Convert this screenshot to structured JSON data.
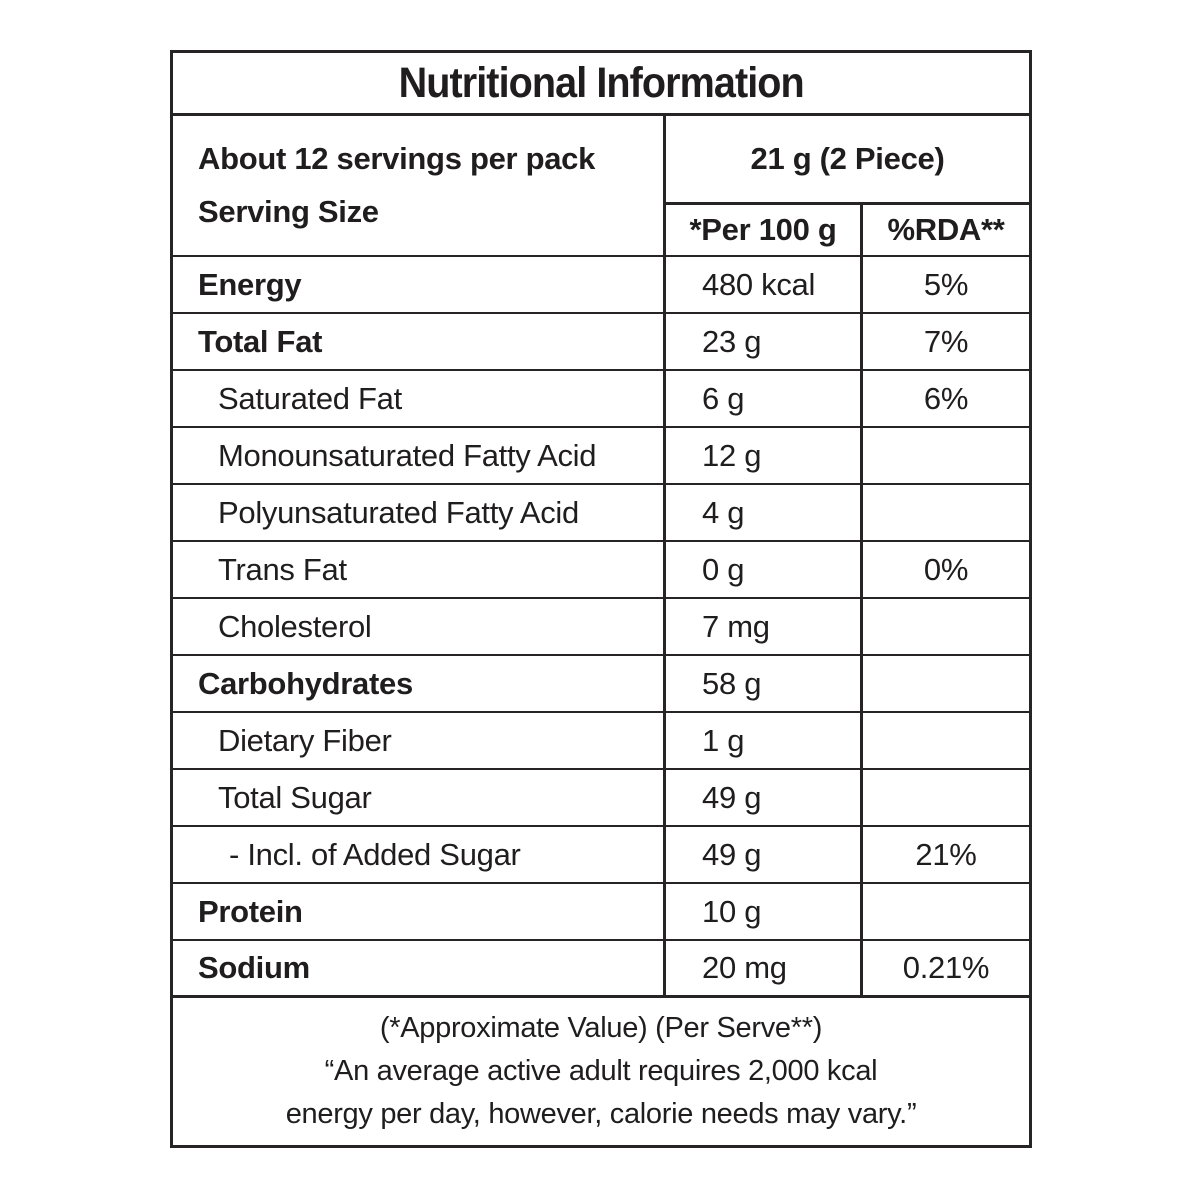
{
  "table": {
    "title": "Nutritional Information",
    "serving_info": {
      "line1": "About 12 servings per pack",
      "line2": "Serving Size",
      "serving_size": "21 g (2 Piece)",
      "col_per100g": "*Per 100 g",
      "col_rda": "%RDA**"
    },
    "rows": [
      {
        "label": "Energy",
        "bold": true,
        "indent": 0,
        "per100g": "480 kcal",
        "rda": "5%"
      },
      {
        "label": "Total Fat",
        "bold": true,
        "indent": 0,
        "per100g": "23 g",
        "rda": "7%"
      },
      {
        "label": "Saturated Fat",
        "bold": false,
        "indent": 1,
        "per100g": "6 g",
        "rda": "6%"
      },
      {
        "label": "Monounsaturated Fatty Acid",
        "bold": false,
        "indent": 1,
        "per100g": "12 g",
        "rda": ""
      },
      {
        "label": "Polyunsaturated Fatty Acid",
        "bold": false,
        "indent": 1,
        "per100g": "4 g",
        "rda": ""
      },
      {
        "label": "Trans Fat",
        "bold": false,
        "indent": 1,
        "per100g": "0 g",
        "rda": "0%"
      },
      {
        "label": "Cholesterol",
        "bold": false,
        "indent": 1,
        "per100g": "7 mg",
        "rda": ""
      },
      {
        "label": "Carbohydrates",
        "bold": true,
        "indent": 0,
        "per100g": "58 g",
        "rda": ""
      },
      {
        "label": "Dietary Fiber",
        "bold": false,
        "indent": 1,
        "per100g": "1 g",
        "rda": ""
      },
      {
        "label": "Total Sugar",
        "bold": false,
        "indent": 1,
        "per100g": "49 g",
        "rda": ""
      },
      {
        "label": "- Incl. of Added Sugar",
        "bold": false,
        "indent": 2,
        "per100g": "49 g",
        "rda": "21%"
      },
      {
        "label": "Protein",
        "bold": true,
        "indent": 0,
        "per100g": "10 g",
        "rda": ""
      },
      {
        "label": "Sodium",
        "bold": true,
        "indent": 0,
        "per100g": "20 mg",
        "rda": "0.21%"
      }
    ],
    "footer": {
      "line1": "(*Approximate Value) (Per Serve**)",
      "line2": "“An average active adult requires 2,000 kcal",
      "line3": "energy per day, however, calorie needs may vary.”"
    },
    "colors": {
      "border": "#262425",
      "text": "#1f1d1e",
      "background": "#ffffff"
    }
  }
}
